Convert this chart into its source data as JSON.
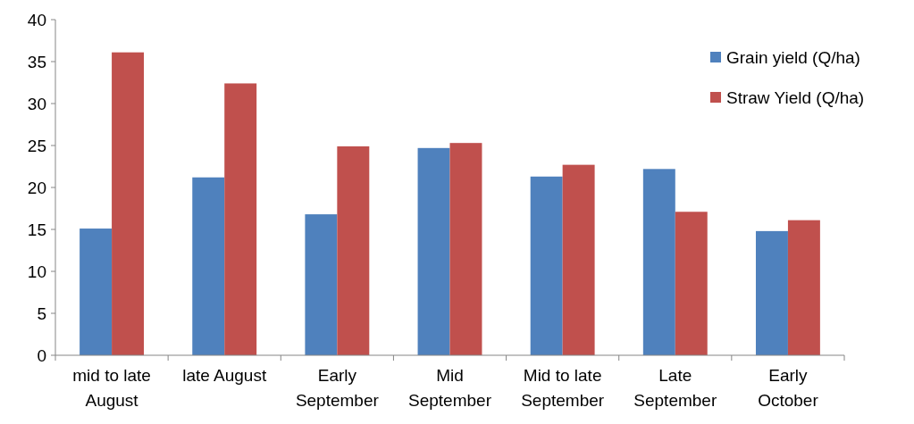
{
  "chart_data": {
    "type": "bar",
    "categories": [
      "mid to late August",
      "late August",
      "Early September",
      "Mid September",
      "Mid to late September",
      "Late September",
      "Early October"
    ],
    "series": [
      {
        "name": "Grain yield (Q/ha)",
        "color": "#4f81bd",
        "values": [
          15.1,
          21.2,
          16.8,
          24.7,
          21.3,
          22.2,
          14.8
        ]
      },
      {
        "name": "Straw Yield (Q/ha)",
        "color": "#c0504d",
        "values": [
          36.1,
          32.4,
          24.9,
          25.3,
          22.7,
          17.1,
          16.1
        ]
      }
    ],
    "ylim": [
      0,
      40
    ],
    "yticks": [
      0,
      5,
      10,
      15,
      20,
      25,
      30,
      35,
      40
    ],
    "grid": false,
    "legend": "top right"
  }
}
